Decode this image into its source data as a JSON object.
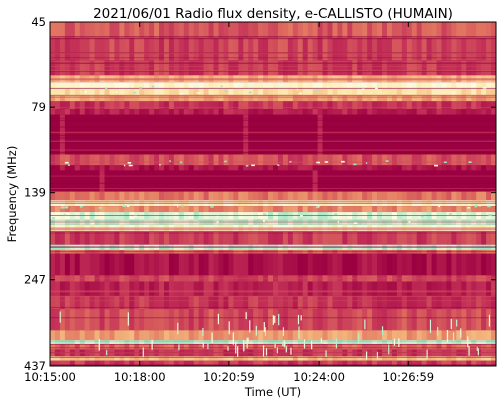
{
  "chart_data": {
    "type": "heatmap",
    "title": "2021/06/01  Radio flux density, e-CALLISTO (HUMAIN)",
    "xlabel": "Time (UT)",
    "ylabel": "Frequency (MHz)",
    "x_ticks": [
      "10:15:00",
      "10:18:00",
      "10:20:59",
      "10:24:00",
      "10:26:59"
    ],
    "y_ticks": [
      "45",
      "79",
      "139",
      "247",
      "437"
    ],
    "y_axis": "frequency increasing downward, 45 MHz at top to 437 MHz at bottom",
    "grid": false,
    "colorscale": [
      "#9b0040",
      "#c22d57",
      "#e0705f",
      "#f3b27a",
      "#fde7a8",
      "#fffbe0",
      "#9ee6c2"
    ],
    "bands": [
      {
        "freq_low": 45,
        "freq_high": 50,
        "intensity": 0.28
      },
      {
        "freq_low": 50,
        "freq_high": 58,
        "intensity": 0.22
      },
      {
        "freq_low": 58,
        "freq_high": 64,
        "intensity": 0.2
      },
      {
        "freq_low": 64,
        "freq_high": 67,
        "intensity": 0.5
      },
      {
        "freq_low": 67,
        "freq_high": 70,
        "intensity": 0.78
      },
      {
        "freq_low": 70,
        "freq_high": 73,
        "intensity": 0.65
      },
      {
        "freq_low": 73,
        "freq_high": 76,
        "intensity": 0.45
      },
      {
        "freq_low": 76,
        "freq_high": 80,
        "intensity": 0.18
      },
      {
        "freq_low": 80,
        "freq_high": 83,
        "intensity": 0.12
      },
      {
        "freq_low": 83,
        "freq_high": 108,
        "intensity": 0.0
      },
      {
        "freq_low": 108,
        "freq_high": 116,
        "intensity": 0.25
      },
      {
        "freq_low": 116,
        "freq_high": 120,
        "intensity": 0.08
      },
      {
        "freq_low": 120,
        "freq_high": 138,
        "intensity": 0.0
      },
      {
        "freq_low": 138,
        "freq_high": 146,
        "intensity": 0.35
      },
      {
        "freq_low": 146,
        "freq_high": 152,
        "intensity": 0.72
      },
      {
        "freq_low": 152,
        "freq_high": 158,
        "intensity": 0.4
      },
      {
        "freq_low": 158,
        "freq_high": 166,
        "intensity": 0.9
      },
      {
        "freq_low": 166,
        "freq_high": 172,
        "intensity": 0.97
      },
      {
        "freq_low": 172,
        "freq_high": 180,
        "intensity": 0.75
      },
      {
        "freq_low": 180,
        "freq_high": 196,
        "intensity": 0.2
      },
      {
        "freq_low": 196,
        "freq_high": 203,
        "intensity": 0.95
      },
      {
        "freq_low": 203,
        "freq_high": 208,
        "intensity": 0.3
      },
      {
        "freq_low": 208,
        "freq_high": 240,
        "intensity": 0.06
      },
      {
        "freq_low": 240,
        "freq_high": 250,
        "intensity": 0.22
      },
      {
        "freq_low": 250,
        "freq_high": 275,
        "intensity": 0.12
      },
      {
        "freq_low": 275,
        "freq_high": 300,
        "intensity": 0.18
      },
      {
        "freq_low": 300,
        "freq_high": 345,
        "intensity": 0.24
      },
      {
        "freq_low": 345,
        "freq_high": 368,
        "intensity": 0.45
      },
      {
        "freq_low": 368,
        "freq_high": 378,
        "intensity": 0.98
      },
      {
        "freq_low": 378,
        "freq_high": 392,
        "intensity": 0.3
      },
      {
        "freq_low": 392,
        "freq_high": 410,
        "intensity": 0.18
      },
      {
        "freq_low": 410,
        "freq_high": 422,
        "intensity": 0.55
      },
      {
        "freq_low": 422,
        "freq_high": 437,
        "intensity": 0.2
      }
    ]
  }
}
